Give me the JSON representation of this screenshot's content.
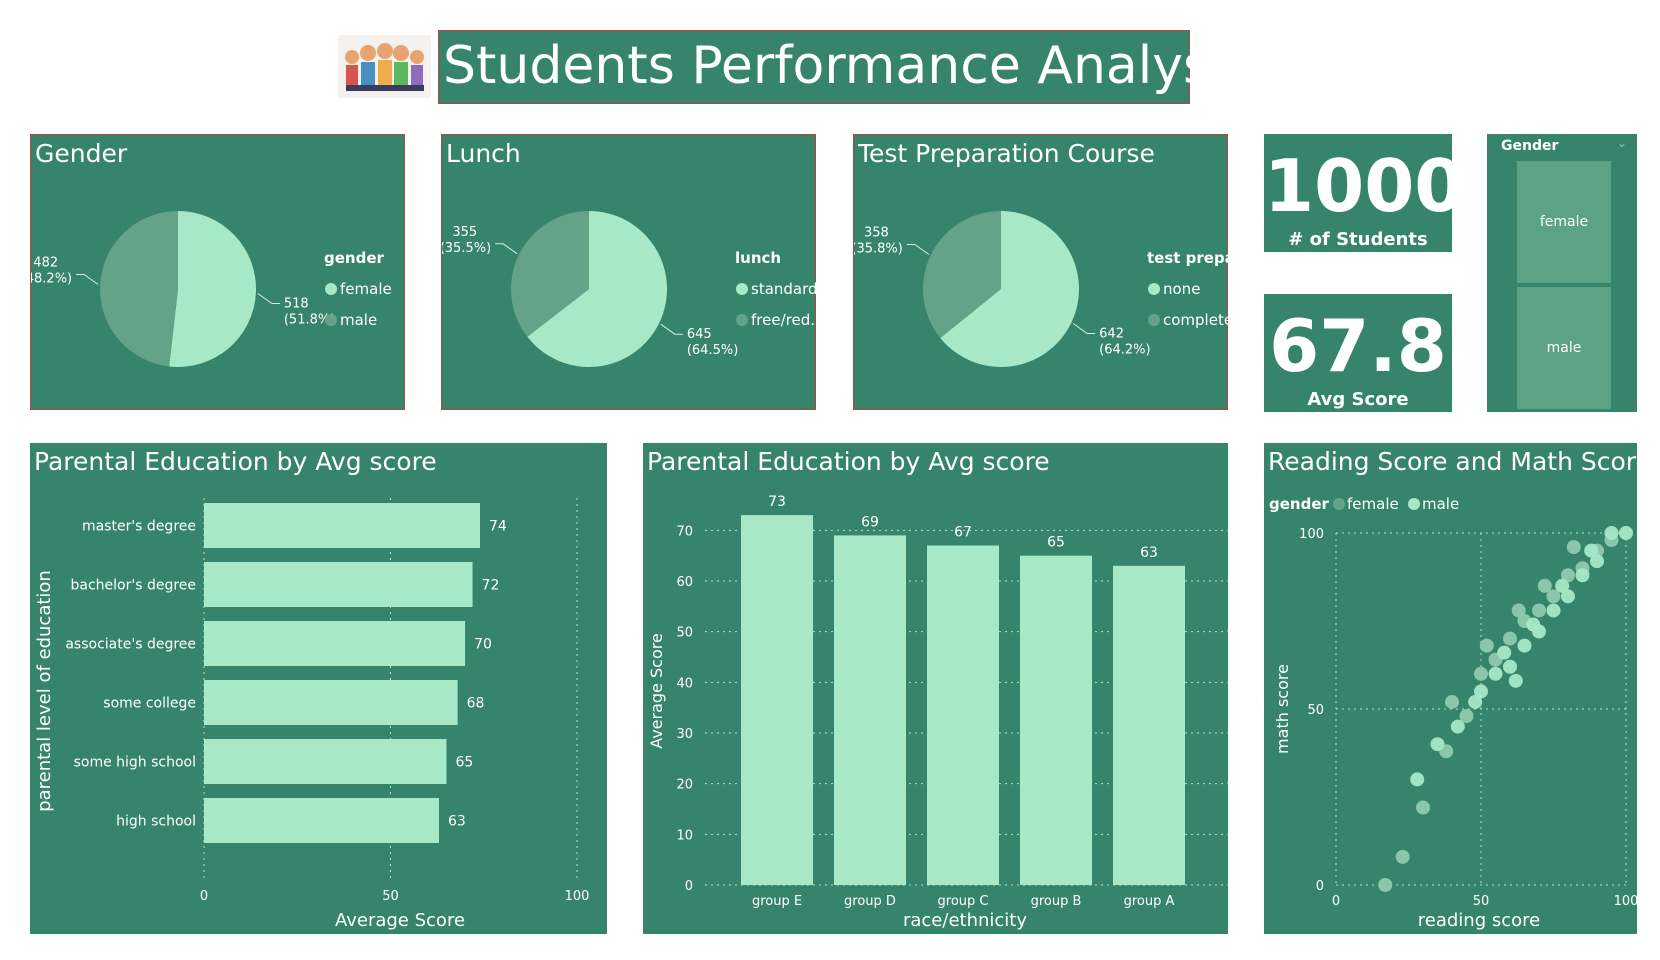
{
  "title": "Students Performance Analysis",
  "logo_icon": "students-group-icon",
  "colors": {
    "panel": "#35846b",
    "light": "#a7e8c7",
    "muted": "#64a38a",
    "border": "#b04545"
  },
  "pies": [
    {
      "title": "Gender",
      "legend_title": "gender",
      "slices": [
        {
          "name": "female",
          "value": 518,
          "label": "518",
          "pct": "(51.8%)"
        },
        {
          "name": "male",
          "value": 482,
          "label": "482",
          "pct": "(48.2%)"
        }
      ]
    },
    {
      "title": "Lunch",
      "legend_title": "lunch",
      "slices": [
        {
          "name": "standard",
          "value": 645,
          "label": "645",
          "pct": "(64.5%)"
        },
        {
          "name": "free/red...",
          "value": 355,
          "label": "355",
          "pct": "(35.5%)"
        }
      ]
    },
    {
      "title": "Test Preparation Course",
      "legend_title": "test preparat...",
      "slices": [
        {
          "name": "none",
          "value": 642,
          "label": "642",
          "pct": "(64.2%)"
        },
        {
          "name": "completed",
          "value": 358,
          "label": "358",
          "pct": "(35.8%)"
        }
      ]
    }
  ],
  "kpis": [
    {
      "value": "1000",
      "label": "# of Students"
    },
    {
      "value": "67.8",
      "label": "Avg Score"
    }
  ],
  "slicer": {
    "title": "Gender",
    "items": [
      "female",
      "male"
    ]
  },
  "hbar": {
    "title": "Parental Education by Avg score",
    "xlabel": "Average Score",
    "ylabel": "parental level of education",
    "categories": [
      "master's degree",
      "bachelor's degree",
      "associate's degree",
      "some college",
      "some high school",
      "high school"
    ],
    "values": [
      74,
      72,
      70,
      68,
      65,
      63
    ],
    "xticks": [
      "0",
      "50",
      "100"
    ],
    "xlim": [
      0,
      100
    ]
  },
  "vbar": {
    "title": "Parental Education by Avg score",
    "xlabel": "race/ethnicity",
    "ylabel": "Average Score",
    "categories": [
      "group E",
      "group D",
      "group C",
      "group B",
      "group A"
    ],
    "values": [
      73,
      69,
      67,
      65,
      63
    ],
    "yticks": [
      "0",
      "10",
      "20",
      "30",
      "40",
      "50",
      "60",
      "70"
    ],
    "ylim": [
      0,
      75
    ]
  },
  "scatter": {
    "title": "Reading Score and Math Score",
    "legend_title": "gender",
    "legend": [
      "female",
      "male"
    ],
    "xlabel": "reading score",
    "ylabel": "math score",
    "xticks": [
      "0",
      "50",
      "100"
    ],
    "yticks": [
      "0",
      "50",
      "100"
    ]
  },
  "chart_data": [
    {
      "type": "pie",
      "title": "Gender",
      "categories": [
        "female",
        "male"
      ],
      "values": [
        518,
        482
      ]
    },
    {
      "type": "pie",
      "title": "Lunch",
      "categories": [
        "standard",
        "free/red..."
      ],
      "values": [
        645,
        355
      ]
    },
    {
      "type": "pie",
      "title": "Test Preparation Course",
      "categories": [
        "none",
        "completed"
      ],
      "values": [
        642,
        358
      ]
    },
    {
      "type": "bar",
      "title": "Parental Education by Avg score",
      "orientation": "horizontal",
      "categories": [
        "master's degree",
        "bachelor's degree",
        "associate's degree",
        "some college",
        "some high school",
        "high school"
      ],
      "values": [
        74,
        72,
        70,
        68,
        65,
        63
      ],
      "xlabel": "Average Score",
      "ylabel": "parental level of education",
      "xlim": [
        0,
        100
      ]
    },
    {
      "type": "bar",
      "title": "Parental Education by Avg score",
      "categories": [
        "group E",
        "group D",
        "group C",
        "group B",
        "group A"
      ],
      "values": [
        73,
        69,
        67,
        65,
        63
      ],
      "xlabel": "race/ethnicity",
      "ylabel": "Average Score",
      "ylim": [
        0,
        75
      ]
    },
    {
      "type": "scatter",
      "title": "Reading Score and Math Score",
      "xlabel": "reading score",
      "ylabel": "math score",
      "xlim": [
        0,
        100
      ],
      "ylim": [
        0,
        100
      ],
      "series": [
        {
          "name": "female",
          "points": [
            [
              28,
              30
            ],
            [
              35,
              40
            ],
            [
              42,
              45
            ],
            [
              48,
              52
            ],
            [
              55,
              60
            ],
            [
              60,
              62
            ],
            [
              65,
              68
            ],
            [
              70,
              72
            ],
            [
              75,
              78
            ],
            [
              80,
              82
            ],
            [
              85,
              88
            ],
            [
              90,
              92
            ],
            [
              95,
              100
            ],
            [
              100,
              100
            ],
            [
              50,
              55
            ],
            [
              58,
              66
            ],
            [
              68,
              74
            ],
            [
              78,
              85
            ],
            [
              88,
              95
            ],
            [
              62,
              58
            ]
          ]
        },
        {
          "name": "male",
          "points": [
            [
              17,
              0
            ],
            [
              23,
              8
            ],
            [
              30,
              22
            ],
            [
              38,
              38
            ],
            [
              45,
              48
            ],
            [
              50,
              60
            ],
            [
              55,
              64
            ],
            [
              60,
              70
            ],
            [
              65,
              75
            ],
            [
              70,
              78
            ],
            [
              75,
              82
            ],
            [
              80,
              88
            ],
            [
              85,
              90
            ],
            [
              90,
              95
            ],
            [
              95,
              98
            ],
            [
              40,
              52
            ],
            [
              52,
              68
            ],
            [
              63,
              78
            ],
            [
              72,
              85
            ],
            [
              82,
              96
            ]
          ]
        }
      ]
    }
  ]
}
